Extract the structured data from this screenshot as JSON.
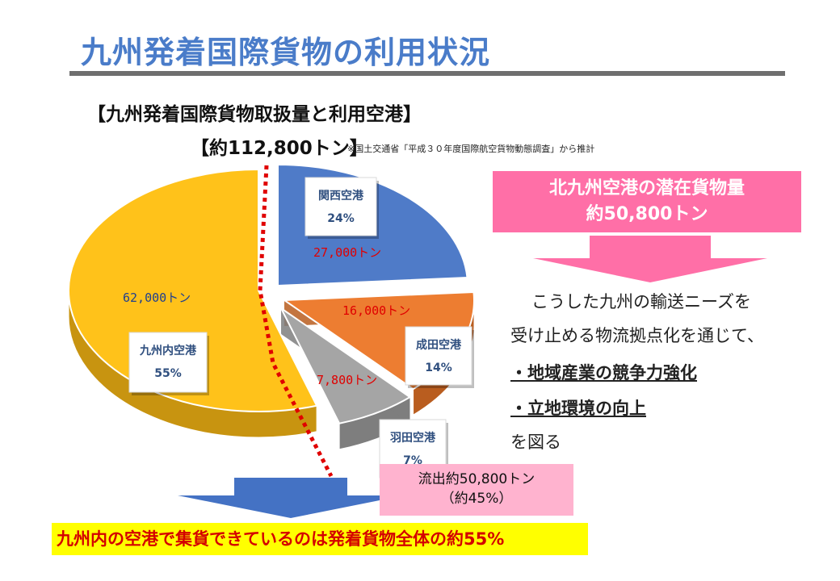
{
  "page": {
    "title": "九州発着国際貨物の利用状況"
  },
  "chart_data": {
    "type": "pie",
    "title": "【九州発着国際貨物取扱量と利用空港】",
    "total_label": "【約112,800トン】",
    "source": "※国土交通省「平成３０年度国際航空貨物動態調査」から推計",
    "categories": [
      "関西空港",
      "成田空港",
      "羽田空港",
      "九州内空港"
    ],
    "percent_labels": [
      "24%",
      "14%",
      "7%",
      "55%"
    ],
    "values": [
      27000,
      16000,
      7800,
      62000
    ],
    "value_labels": [
      "27,000トン",
      "16,000トン",
      "7,800トン",
      "62,000トン"
    ],
    "percents": [
      24,
      14,
      7,
      55
    ],
    "colors": [
      "#4f7bc8",
      "#ed7d31",
      "#a5a5a5",
      "#ffc21a"
    ],
    "exploded": [
      true,
      true,
      true,
      false
    ]
  },
  "potential": {
    "line1": "北九州空港の潜在貨物量",
    "line2": "約50,800トン"
  },
  "description": {
    "line1": "こうした九州の輸送ニーズを",
    "line2": "受け止める物流拠点化を通じて、",
    "line3": "・地域産業の競争力強化",
    "line4": "・立地環境の向上",
    "line5": "を図る"
  },
  "outflow": {
    "line1": "流出約50,800トン",
    "line2": "（約45%）"
  },
  "banner": {
    "text": "九州内の空港で集貨できているのは発着貨物全体の約55%"
  },
  "colors": {
    "title": "#4a7cc9",
    "potential_bg": "#ff6fa7",
    "arrow_pink": "#ff6fa7",
    "arrow_blue": "#4472c4",
    "value_label_red": "#e00000",
    "value_label_blue": "#1f3f8f"
  }
}
